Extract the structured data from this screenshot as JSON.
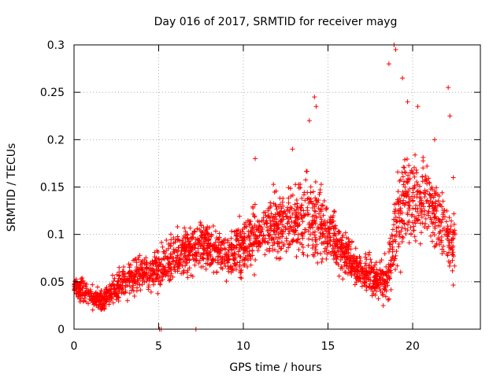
{
  "chart_data": {
    "type": "scatter",
    "title": "Day 016 of 2017, SRMTID for receiver mayg",
    "xlabel": "GPS time / hours",
    "ylabel": "SRMTID / TECUs",
    "xlim": [
      0,
      24
    ],
    "ylim": [
      0,
      0.3
    ],
    "x_ticks": [
      0,
      5,
      10,
      15,
      20
    ],
    "x_tick_labels": [
      "0",
      "5",
      "10",
      "15",
      "20"
    ],
    "y_ticks": [
      0,
      0.05,
      0.1,
      0.15,
      0.2,
      0.25,
      0.3
    ],
    "y_tick_labels": [
      "0",
      "0.05",
      "0.1",
      "0.15",
      "0.2",
      "0.25",
      "0.3"
    ],
    "grid": true,
    "marker": "+",
    "series_color": "#ff0000",
    "profile": {
      "x": [
        0,
        0.5,
        1,
        1.5,
        2,
        2.5,
        3,
        3.5,
        4,
        4.5,
        5,
        5.5,
        6,
        6.5,
        7,
        7.5,
        8,
        8.5,
        9,
        9.5,
        10,
        10.5,
        11,
        11.5,
        12,
        12.5,
        13,
        13.5,
        14,
        14.5,
        15,
        15.5,
        16,
        16.5,
        17,
        17.5,
        18,
        18.5,
        19,
        19.5,
        20,
        20.5,
        21,
        21.5,
        22,
        22.5
      ],
      "median": [
        0.045,
        0.04,
        0.035,
        0.03,
        0.035,
        0.045,
        0.05,
        0.055,
        0.06,
        0.06,
        0.065,
        0.07,
        0.075,
        0.08,
        0.085,
        0.09,
        0.085,
        0.08,
        0.075,
        0.08,
        0.085,
        0.095,
        0.1,
        0.105,
        0.11,
        0.11,
        0.115,
        0.115,
        0.12,
        0.11,
        0.1,
        0.09,
        0.08,
        0.07,
        0.06,
        0.055,
        0.05,
        0.055,
        0.1,
        0.13,
        0.14,
        0.135,
        0.13,
        0.12,
        0.1,
        0.09
      ],
      "spread": [
        0.012,
        0.015,
        0.012,
        0.012,
        0.015,
        0.02,
        0.02,
        0.02,
        0.025,
        0.025,
        0.025,
        0.03,
        0.03,
        0.03,
        0.03,
        0.03,
        0.03,
        0.03,
        0.03,
        0.03,
        0.035,
        0.035,
        0.035,
        0.035,
        0.04,
        0.04,
        0.045,
        0.045,
        0.05,
        0.045,
        0.04,
        0.035,
        0.03,
        0.03,
        0.025,
        0.025,
        0.02,
        0.03,
        0.06,
        0.06,
        0.06,
        0.055,
        0.05,
        0.05,
        0.045,
        0.04
      ]
    },
    "peaks": [
      {
        "x": 10.7,
        "y": 0.18
      },
      {
        "x": 12.9,
        "y": 0.19
      },
      {
        "x": 13.9,
        "y": 0.22
      },
      {
        "x": 14.2,
        "y": 0.245
      },
      {
        "x": 14.3,
        "y": 0.235
      },
      {
        "x": 18.6,
        "y": 0.28
      },
      {
        "x": 18.9,
        "y": 0.3
      },
      {
        "x": 19.0,
        "y": 0.295
      },
      {
        "x": 19.4,
        "y": 0.265
      },
      {
        "x": 19.7,
        "y": 0.24
      },
      {
        "x": 20.3,
        "y": 0.235
      },
      {
        "x": 21.3,
        "y": 0.2
      },
      {
        "x": 22.1,
        "y": 0.255
      },
      {
        "x": 22.2,
        "y": 0.225
      },
      {
        "x": 22.4,
        "y": 0.16
      }
    ],
    "zero_points": [
      {
        "x": 5.05,
        "y": 0
      },
      {
        "x": 5.15,
        "y": 0
      },
      {
        "x": 7.2,
        "y": 0
      }
    ],
    "point_count": 2400
  }
}
